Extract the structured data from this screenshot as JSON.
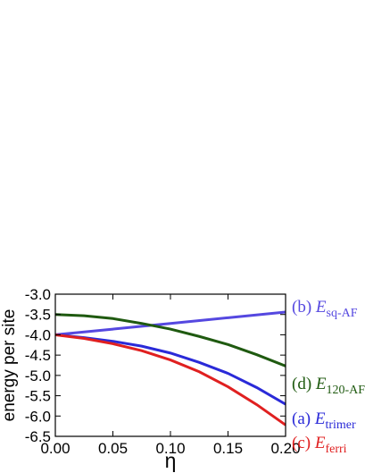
{
  "chart_data": {
    "type": "line",
    "xlabel": "η",
    "ylabel": "energy per site",
    "xlim": [
      0.0,
      0.2
    ],
    "ylim": [
      -6.5,
      -3.0
    ],
    "xticks": [
      "0.00",
      "0.05",
      "0.10",
      "0.15",
      "0.20"
    ],
    "yticks": [
      "-3.0",
      "-3.5",
      "-4.0",
      "-4.5",
      "-5.0",
      "-5.5",
      "-6.0",
      "-6.5"
    ],
    "grid": false,
    "legend_position": "right",
    "series": [
      {
        "letter": "(b)",
        "symbol": "E",
        "subscript": "sq-AF",
        "color": "#5548e0",
        "x": [
          0.0,
          0.05,
          0.1,
          0.15,
          0.2
        ],
        "y": [
          -4.0,
          -3.86,
          -3.72,
          -3.58,
          -3.44
        ]
      },
      {
        "letter": "(d)",
        "symbol": "E",
        "subscript": "120-AF",
        "color": "#1f5a10",
        "x": [
          0.0,
          0.025,
          0.05,
          0.075,
          0.1,
          0.125,
          0.15,
          0.175,
          0.2
        ],
        "y": [
          -3.5,
          -3.53,
          -3.6,
          -3.72,
          -3.86,
          -4.04,
          -4.24,
          -4.49,
          -4.77
        ]
      },
      {
        "letter": "(a)",
        "symbol": "E",
        "subscript": "trimer",
        "color": "#2a2ad8",
        "x": [
          0.0,
          0.025,
          0.05,
          0.075,
          0.1,
          0.125,
          0.15,
          0.175,
          0.2
        ],
        "y": [
          -4.0,
          -4.07,
          -4.16,
          -4.28,
          -4.45,
          -4.68,
          -4.95,
          -5.3,
          -5.71
        ]
      },
      {
        "letter": "(c)",
        "symbol": "E",
        "subscript": "ferri",
        "color": "#e02020",
        "x": [
          0.0,
          0.025,
          0.05,
          0.075,
          0.1,
          0.125,
          0.15,
          0.175,
          0.2
        ],
        "y": [
          -4.0,
          -4.09,
          -4.22,
          -4.39,
          -4.62,
          -4.91,
          -5.28,
          -5.72,
          -6.22
        ]
      }
    ]
  }
}
